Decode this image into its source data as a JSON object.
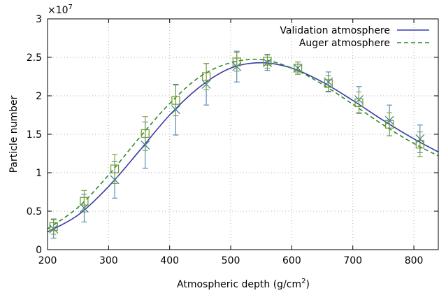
{
  "chart_data": {
    "type": "line",
    "xlabel": "Atmospheric depth (g/cm",
    "xlabel_sup": "2",
    "xlabel_end": ")",
    "ylabel": "Particle number",
    "y_multiplier_base": "×10",
    "y_multiplier_exp": "7",
    "xlim": [
      200,
      840
    ],
    "ylim": [
      0,
      3
    ],
    "xticks": [
      200,
      300,
      400,
      500,
      600,
      700,
      800
    ],
    "yticks": [
      0,
      0.5,
      1,
      1.5,
      2,
      2.5,
      3
    ],
    "ytick_labels": [
      "0",
      "0.5",
      "1",
      "1.5",
      "2",
      "2.5",
      "3"
    ],
    "grid": true,
    "legend_position": "top-right",
    "series": [
      {
        "name": "Validation atmosphere",
        "color": "#3a3aa8",
        "dash": "solid",
        "marker": "x",
        "marker_color": "#3c78a8",
        "curve": {
          "x": [
            200,
            250,
            300,
            350,
            400,
            450,
            500,
            550,
            600,
            650,
            700,
            750,
            800,
            840
          ],
          "y": [
            0.23,
            0.45,
            0.82,
            1.28,
            1.75,
            2.12,
            2.36,
            2.43,
            2.36,
            2.18,
            1.94,
            1.68,
            1.44,
            1.27
          ]
        },
        "points": {
          "x": [
            210,
            260,
            310,
            360,
            410,
            460,
            510,
            560,
            610,
            660,
            710,
            760,
            810
          ],
          "y": [
            0.27,
            0.54,
            0.91,
            1.36,
            1.82,
            2.15,
            2.38,
            2.43,
            2.36,
            2.18,
            1.95,
            1.68,
            1.44
          ],
          "err": [
            0.12,
            0.18,
            0.24,
            0.3,
            0.33,
            0.27,
            0.2,
            0.1,
            0.08,
            0.13,
            0.17,
            0.2,
            0.18
          ]
        }
      },
      {
        "name": "Auger atmosphere",
        "color": "#2a8a2a",
        "dash": "dashed",
        "marker": "square",
        "marker_color": "#6f9a2a",
        "curve": {
          "x": [
            200,
            250,
            300,
            350,
            400,
            450,
            500,
            550,
            600,
            650,
            700,
            750,
            800,
            840
          ],
          "y": [
            0.27,
            0.55,
            0.97,
            1.45,
            1.9,
            2.25,
            2.43,
            2.47,
            2.36,
            2.15,
            1.89,
            1.62,
            1.38,
            1.22
          ]
        },
        "points": {
          "x": [
            210,
            260,
            310,
            360,
            410,
            460,
            510,
            560,
            610,
            660,
            710,
            760,
            810
          ],
          "y": [
            0.3,
            0.63,
            1.05,
            1.51,
            1.94,
            2.25,
            2.44,
            2.45,
            2.36,
            2.16,
            1.91,
            1.63,
            1.37
          ],
          "err": [
            0.1,
            0.14,
            0.19,
            0.22,
            0.2,
            0.17,
            0.12,
            0.09,
            0.08,
            0.1,
            0.14,
            0.15,
            0.16
          ]
        }
      }
    ]
  }
}
